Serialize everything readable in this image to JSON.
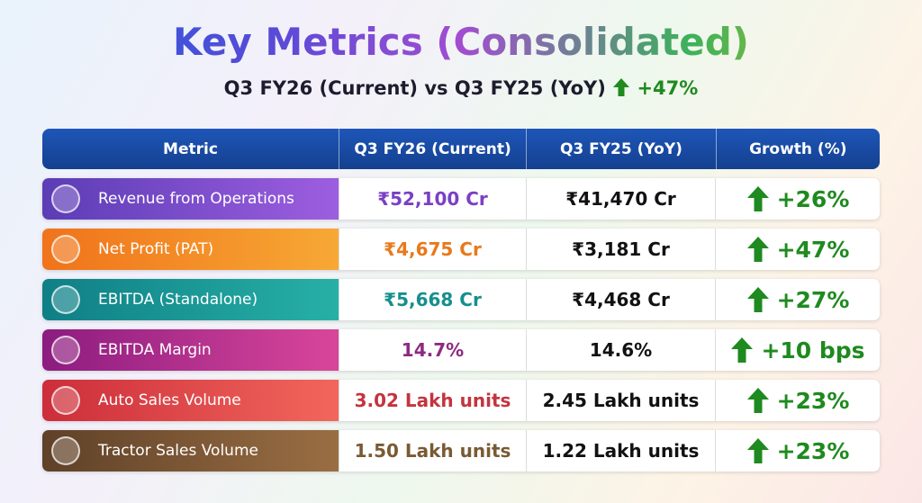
{
  "header": {
    "title": "Key Metrics (Consolidated)",
    "subtitle": "Q3 FY26 (Current) vs Q3 FY25 (YoY)",
    "subtitle_change": "+47%"
  },
  "table": {
    "columns": [
      "Metric",
      "Q3 FY26 (Current)",
      "Q3 FY25 (YoY)",
      "Growth (%)"
    ],
    "rows": [
      [
        "Revenue from Operations",
        "₹52,100 Cr",
        "₹41,470 Cr",
        "+26%"
      ],
      [
        "Net Profit (PAT)",
        "₹4,675 Cr",
        "₹3,181 Cr",
        "+47%"
      ],
      [
        "EBITDA (Standalone)",
        "₹5,668 Cr",
        "₹4,468 Cr",
        "+27%"
      ],
      [
        "EBITDA Margin",
        "14.7%",
        "14.6%",
        "+10 bps"
      ],
      [
        "Auto Sales Volume",
        "3.02 Lakh units",
        "2.45 Lakh units",
        "+23%"
      ],
      [
        "Tractor Sales Volume",
        "1.50 Lakh units",
        "1.22 Lakh units",
        "+23%"
      ]
    ]
  }
}
